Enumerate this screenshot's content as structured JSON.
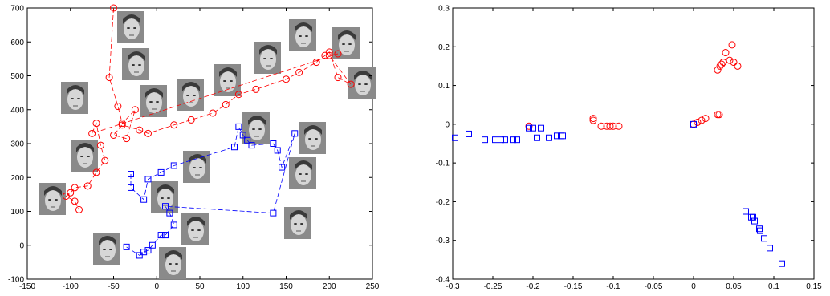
{
  "chart_data": [
    {
      "type": "scatter",
      "title": "",
      "xlabel": "",
      "ylabel": "",
      "xlim": [
        -150,
        250
      ],
      "ylim": [
        -100,
        700
      ],
      "xticks": [
        "-150",
        "-100",
        "-50",
        "0",
        "50",
        "100",
        "150",
        "200",
        "250"
      ],
      "yticks": [
        "-100",
        "0",
        "100",
        "200",
        "300",
        "400",
        "500",
        "600",
        "700"
      ],
      "xtick_values": [
        -150,
        -100,
        -50,
        0,
        50,
        100,
        150,
        200,
        250
      ],
      "ytick_values": [
        -100,
        0,
        100,
        200,
        300,
        400,
        500,
        600,
        700
      ],
      "grid": false,
      "legend": "none",
      "colors": {
        "red": "#ff0000",
        "blue": "#0000ff"
      },
      "annotations": "face thumbnail images placed along the trajectories",
      "series": [
        {
          "marker": "circle",
          "color": "#ff0000",
          "line": "dashed",
          "points": [
            [
              -50,
              700
            ],
            [
              -55,
              495
            ],
            [
              -45,
              410
            ],
            [
              -40,
              360
            ],
            [
              -25,
              400
            ],
            [
              -35,
              315
            ],
            [
              -50,
              325
            ],
            [
              -40,
              355
            ],
            [
              -20,
              340
            ],
            [
              -10,
              330
            ],
            [
              20,
              355
            ],
            [
              40,
              370
            ],
            [
              65,
              390
            ],
            [
              80,
              415
            ],
            [
              95,
              445
            ],
            [
              115,
              460
            ],
            [
              150,
              490
            ],
            [
              165,
              510
            ],
            [
              185,
              540
            ],
            [
              195,
              560
            ],
            [
              200,
              570
            ],
            [
              210,
              495
            ],
            [
              225,
              475
            ],
            [
              200,
              560
            ],
            [
              210,
              565
            ],
            [
              -75,
              330
            ],
            [
              -70,
              360
            ],
            [
              -65,
              295
            ],
            [
              -60,
              250
            ],
            [
              -70,
              215
            ],
            [
              -80,
              175
            ],
            [
              -95,
              170
            ],
            [
              -100,
              155
            ],
            [
              -105,
              145
            ],
            [
              -95,
              130
            ],
            [
              -90,
              105
            ]
          ]
        },
        {
          "marker": "square",
          "color": "#0000ff",
          "line": "dashed",
          "points": [
            [
              -30,
              210
            ],
            [
              -30,
              170
            ],
            [
              -15,
              135
            ],
            [
              -10,
              195
            ],
            [
              5,
              215
            ],
            [
              20,
              235
            ],
            [
              90,
              290
            ],
            [
              95,
              350
            ],
            [
              100,
              325
            ],
            [
              105,
              310
            ],
            [
              110,
              295
            ],
            [
              135,
              300
            ],
            [
              140,
              280
            ],
            [
              145,
              230
            ],
            [
              160,
              330
            ],
            [
              135,
              95
            ],
            [
              10,
              115
            ],
            [
              15,
              95
            ],
            [
              20,
              60
            ],
            [
              10,
              30
            ],
            [
              5,
              30
            ],
            [
              -5,
              0
            ],
            [
              -10,
              -15
            ],
            [
              -15,
              -20
            ],
            [
              -20,
              -30
            ],
            [
              -35,
              -5
            ]
          ]
        }
      ]
    },
    {
      "type": "scatter",
      "title": "",
      "xlabel": "",
      "ylabel": "",
      "xlim": [
        -0.3,
        0.15
      ],
      "ylim": [
        -0.4,
        0.3
      ],
      "xticks": [
        "-0.3",
        "-0.25",
        "-0.2",
        "-0.15",
        "-0.1",
        "-0.05",
        "0",
        "0.05",
        "0.1",
        "0.15"
      ],
      "yticks": [
        "-0.4",
        "-0.3",
        "-0.2",
        "-0.1",
        "0",
        "0.1",
        "0.2",
        "0.3"
      ],
      "xtick_values": [
        -0.3,
        -0.25,
        -0.2,
        -0.15,
        -0.1,
        -0.05,
        0,
        0.05,
        0.1,
        0.15
      ],
      "ytick_values": [
        -0.4,
        -0.3,
        -0.2,
        -0.1,
        0,
        0.1,
        0.2,
        0.3
      ],
      "grid": false,
      "legend": "none",
      "colors": {
        "red": "#ff0000",
        "blue": "#0000ff"
      },
      "series": [
        {
          "marker": "circle",
          "color": "#ff0000",
          "points": [
            [
              -0.205,
              -0.005
            ],
            [
              -0.125,
              0.01
            ],
            [
              -0.125,
              0.015
            ],
            [
              -0.115,
              -0.005
            ],
            [
              -0.108,
              -0.005
            ],
            [
              -0.104,
              -0.005
            ],
            [
              -0.1,
              -0.005
            ],
            [
              -0.093,
              -0.005
            ],
            [
              0.0,
              0.0
            ],
            [
              0.005,
              0.005
            ],
            [
              0.01,
              0.01
            ],
            [
              0.015,
              0.015
            ],
            [
              0.03,
              0.025
            ],
            [
              0.032,
              0.025
            ],
            [
              0.03,
              0.14
            ],
            [
              0.033,
              0.15
            ],
            [
              0.035,
              0.155
            ],
            [
              0.037,
              0.16
            ],
            [
              0.04,
              0.185
            ],
            [
              0.045,
              0.165
            ],
            [
              0.048,
              0.205
            ],
            [
              0.05,
              0.16
            ],
            [
              0.055,
              0.15
            ]
          ]
        },
        {
          "marker": "square",
          "color": "#0000ff",
          "points": [
            [
              -0.297,
              -0.035
            ],
            [
              -0.28,
              -0.025
            ],
            [
              -0.26,
              -0.04
            ],
            [
              -0.247,
              -0.04
            ],
            [
              -0.24,
              -0.04
            ],
            [
              -0.235,
              -0.04
            ],
            [
              -0.225,
              -0.04
            ],
            [
              -0.22,
              -0.04
            ],
            [
              -0.205,
              -0.01
            ],
            [
              -0.2,
              -0.01
            ],
            [
              -0.195,
              -0.035
            ],
            [
              -0.19,
              -0.01
            ],
            [
              -0.18,
              -0.035
            ],
            [
              -0.17,
              -0.03
            ],
            [
              -0.165,
              -0.03
            ],
            [
              -0.163,
              -0.03
            ],
            [
              -0.0,
              -0.0
            ],
            [
              0.065,
              -0.225
            ],
            [
              0.072,
              -0.24
            ],
            [
              0.074,
              -0.24
            ],
            [
              0.076,
              -0.25
            ],
            [
              0.082,
              -0.27
            ],
            [
              0.083,
              -0.275
            ],
            [
              0.088,
              -0.295
            ],
            [
              0.095,
              -0.32
            ],
            [
              0.11,
              -0.36
            ]
          ]
        }
      ]
    }
  ]
}
